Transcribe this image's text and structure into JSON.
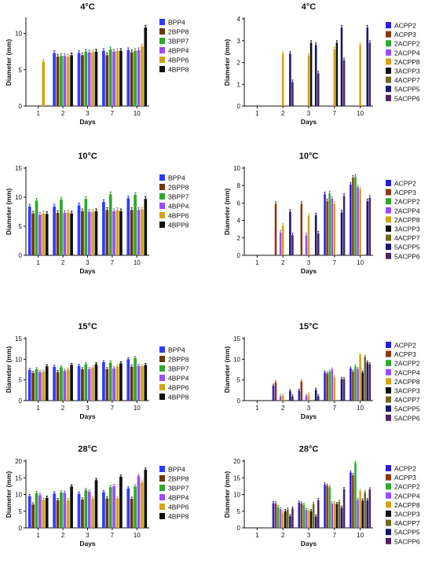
{
  "colors": {
    "BPP4": "#2e3bff",
    "2BPP8": "#6b3a0a",
    "3BPP7": "#2fa82f",
    "4BPP4": "#9a4cff",
    "4BPP6": "#d3a21c",
    "4BPP8": "#111111",
    "ACPP2": "#2e1fd6",
    "ACPP3": "#8a3a12",
    "2ACPP2": "#2fa82f",
    "2ACPP4": "#9a4cff",
    "2ACPP8": "#d3a21c",
    "3ACPP3": "#111111",
    "4ACPP7": "#6f6a22",
    "5ACPP5": "#1a1570",
    "5ACPP6": "#4a2660"
  },
  "chart_data": [
    {
      "type": "bar",
      "title": "4°C",
      "xlabel": "Days",
      "ylabel": "Diameter (mm)",
      "categories": [
        "1",
        "2",
        "3",
        "7",
        "10"
      ],
      "ylim": [
        0,
        12
      ],
      "yticks": [
        0,
        5,
        10
      ],
      "series": [
        {
          "name": "BPP4",
          "values": [
            0,
            7.3,
            7.3,
            7.6,
            7.7
          ]
        },
        {
          "name": "2BPP8",
          "values": [
            0,
            6.8,
            7.0,
            7.0,
            7.4
          ]
        },
        {
          "name": "3BPP7",
          "values": [
            0,
            6.9,
            7.5,
            7.8,
            7.6
          ]
        },
        {
          "name": "4BPP4",
          "values": [
            0,
            6.9,
            7.4,
            7.5,
            7.7
          ]
        },
        {
          "name": "4BPP6",
          "values": [
            6.1,
            6.8,
            7.4,
            7.6,
            8.2
          ]
        },
        {
          "name": "4BPP8",
          "values": [
            0,
            7.0,
            7.5,
            7.6,
            10.8
          ]
        }
      ]
    },
    {
      "type": "bar",
      "title": "4°C",
      "xlabel": "Days",
      "ylabel": "Diameter (mm)",
      "categories": [
        "1",
        "2",
        "3",
        "7",
        "10"
      ],
      "ylim": [
        0,
        4
      ],
      "yticks": [
        0,
        1,
        2,
        3,
        4
      ],
      "series": [
        {
          "name": "ACPP2",
          "values": [
            0,
            0,
            0,
            0,
            0
          ]
        },
        {
          "name": "ACPP3",
          "values": [
            0,
            0,
            0,
            0,
            0
          ]
        },
        {
          "name": "2ACPP2",
          "values": [
            0,
            0,
            0,
            0,
            0
          ]
        },
        {
          "name": "2ACPP4",
          "values": [
            0,
            0,
            0,
            0,
            0
          ]
        },
        {
          "name": "2ACPP8",
          "values": [
            0,
            2.4,
            2.3,
            2.6,
            2.8
          ]
        },
        {
          "name": "3ACPP3",
          "values": [
            0,
            0,
            2.9,
            2.9,
            0
          ]
        },
        {
          "name": "4ACPP7",
          "values": [
            0,
            0,
            0,
            0,
            0
          ]
        },
        {
          "name": "5ACPP5",
          "values": [
            0,
            2.4,
            2.8,
            3.6,
            3.6
          ]
        },
        {
          "name": "5ACPP6",
          "values": [
            0,
            1.1,
            1.5,
            2.1,
            2.9
          ]
        }
      ]
    },
    {
      "type": "bar",
      "title": "10°C",
      "xlabel": "Days",
      "ylabel": "Diameter (mm)",
      "categories": [
        "1",
        "2",
        "3",
        "7",
        "10"
      ],
      "ylim": [
        0,
        15
      ],
      "yticks": [
        0,
        5,
        10,
        15
      ],
      "series": [
        {
          "name": "BPP4",
          "values": [
            8.4,
            8.4,
            8.6,
            9.2,
            9.8
          ]
        },
        {
          "name": "2BPP8",
          "values": [
            7.2,
            7.3,
            7.6,
            7.8,
            7.8
          ]
        },
        {
          "name": "3BPP7",
          "values": [
            9.4,
            9.6,
            9.7,
            10.5,
            10.4
          ]
        },
        {
          "name": "4BPP4",
          "values": [
            7.0,
            7.3,
            7.5,
            7.6,
            7.8
          ]
        },
        {
          "name": "4BPP6",
          "values": [
            7.2,
            7.4,
            7.5,
            7.8,
            7.9
          ]
        },
        {
          "name": "4BPP8",
          "values": [
            7.1,
            7.2,
            7.6,
            7.6,
            9.7
          ]
        }
      ]
    },
    {
      "type": "bar",
      "title": "10°C",
      "xlabel": "Days",
      "ylabel": "Diameter (mm)",
      "categories": [
        "1",
        "2",
        "3",
        "7",
        "10"
      ],
      "ylim": [
        0,
        10
      ],
      "yticks": [
        0,
        2,
        4,
        6,
        8,
        10
      ],
      "series": [
        {
          "name": "ACPP2",
          "values": [
            0,
            0,
            0,
            7.0,
            8.1
          ]
        },
        {
          "name": "ACPP3",
          "values": [
            0,
            5.9,
            5.9,
            6.2,
            8.9
          ]
        },
        {
          "name": "2ACPP2",
          "values": [
            0,
            0,
            0,
            7.1,
            9.0
          ]
        },
        {
          "name": "2ACPP4",
          "values": [
            0,
            2.6,
            2.3,
            6.5,
            7.8
          ]
        },
        {
          "name": "2ACPP8",
          "values": [
            0,
            3.4,
            4.5,
            5.9,
            7.6
          ]
        },
        {
          "name": "3ACPP3",
          "values": [
            0,
            0,
            0,
            0,
            0
          ]
        },
        {
          "name": "4ACPP7",
          "values": [
            0,
            0,
            0,
            0,
            0
          ]
        },
        {
          "name": "5ACPP5",
          "values": [
            0,
            5.0,
            4.6,
            4.9,
            6.2
          ]
        },
        {
          "name": "5ACPP6",
          "values": [
            0,
            2.3,
            2.5,
            6.8,
            6.6
          ]
        }
      ]
    },
    {
      "type": "bar",
      "title": "15°C",
      "xlabel": "Days",
      "ylabel": "Diameter (mm)",
      "categories": [
        "1",
        "2",
        "3",
        "7",
        "10"
      ],
      "ylim": [
        0,
        15
      ],
      "yticks": [
        0,
        5,
        10,
        15
      ],
      "series": [
        {
          "name": "BPP4",
          "values": [
            7.4,
            8.2,
            8.4,
            9.3,
            10.0
          ]
        },
        {
          "name": "2BPP8",
          "values": [
            6.7,
            6.9,
            7.6,
            7.6,
            8.2
          ]
        },
        {
          "name": "3BPP7",
          "values": [
            7.6,
            8.1,
            8.8,
            9.2,
            10.3
          ]
        },
        {
          "name": "4BPP4",
          "values": [
            6.9,
            7.2,
            7.6,
            7.8,
            8.4
          ]
        },
        {
          "name": "4BPP6",
          "values": [
            7.0,
            7.5,
            8.0,
            8.2,
            8.3
          ]
        },
        {
          "name": "4BPP8",
          "values": [
            8.3,
            8.6,
            8.8,
            9.0,
            8.6
          ]
        }
      ]
    },
    {
      "type": "bar",
      "title": "15°C",
      "xlabel": "Days",
      "ylabel": "Diameter (mm)",
      "categories": [
        "1",
        "2",
        "3",
        "7",
        "10"
      ],
      "ylim": [
        0,
        15
      ],
      "yticks": [
        0,
        5,
        10,
        15
      ],
      "series": [
        {
          "name": "ACPP2",
          "values": [
            0,
            3.6,
            2.4,
            6.8,
            7.8
          ]
        },
        {
          "name": "ACPP3",
          "values": [
            0,
            4.4,
            4.6,
            6.5,
            7.0
          ]
        },
        {
          "name": "2ACPP2",
          "values": [
            0,
            0,
            0,
            7.0,
            8.3
          ]
        },
        {
          "name": "2ACPP4",
          "values": [
            0,
            1.0,
            1.1,
            7.5,
            7.6
          ]
        },
        {
          "name": "2ACPP8",
          "values": [
            0,
            1.2,
            1.5,
            5.6,
            11.0
          ]
        },
        {
          "name": "3ACPP3",
          "values": [
            0,
            0,
            0,
            0,
            6.8
          ]
        },
        {
          "name": "4ACPP7",
          "values": [
            0,
            0,
            0,
            0,
            10.6
          ]
        },
        {
          "name": "5ACPP5",
          "values": [
            0,
            2.3,
            2.6,
            5.2,
            9.2
          ]
        },
        {
          "name": "5ACPP6",
          "values": [
            0,
            1.0,
            1.1,
            5.2,
            8.8
          ]
        }
      ]
    },
    {
      "type": "bar",
      "title": "28°C",
      "xlabel": "Days",
      "ylabel": "Diameter (mm)",
      "categories": [
        "1",
        "2",
        "3",
        "7",
        "10"
      ],
      "ylim": [
        0,
        20
      ],
      "yticks": [
        0,
        5,
        10,
        15,
        20
      ],
      "series": [
        {
          "name": "BPP4",
          "values": [
            9.5,
            10.3,
            10.2,
            10.7,
            11.8
          ]
        },
        {
          "name": "2BPP8",
          "values": [
            7.0,
            8.3,
            8.5,
            8.8,
            8.7
          ]
        },
        {
          "name": "3BPP7",
          "values": [
            10.4,
            10.6,
            11.3,
            12.2,
            12.4
          ]
        },
        {
          "name": "4BPP4",
          "values": [
            9.8,
            10.5,
            10.8,
            12.5,
            15.5
          ]
        },
        {
          "name": "4BPP6",
          "values": [
            8.4,
            8.3,
            8.8,
            8.9,
            13.6
          ]
        },
        {
          "name": "4BPP8",
          "values": [
            9.0,
            12.4,
            14.3,
            15.3,
            17.4
          ]
        }
      ]
    },
    {
      "type": "bar",
      "title": "28°C",
      "xlabel": "Days",
      "ylabel": "Diameter (mm)",
      "categories": [
        "1",
        "2",
        "3",
        "7",
        "10"
      ],
      "ylim": [
        0,
        20
      ],
      "yticks": [
        0,
        5,
        10,
        15,
        20
      ],
      "series": [
        {
          "name": "ACPP2",
          "values": [
            0,
            7.4,
            7.6,
            13.0,
            16.6
          ]
        },
        {
          "name": "ACPP3",
          "values": [
            0,
            7.3,
            7.3,
            12.6,
            15.8
          ]
        },
        {
          "name": "2ACPP2",
          "values": [
            0,
            6.2,
            6.9,
            12.2,
            19.5
          ]
        },
        {
          "name": "2ACPP4",
          "values": [
            0,
            5.6,
            5.4,
            7.3,
            8.4
          ]
        },
        {
          "name": "2ACPP8",
          "values": [
            0,
            4.6,
            5.2,
            7.4,
            11.0
          ]
        },
        {
          "name": "3ACPP3",
          "values": [
            0,
            5.0,
            5.0,
            7.1,
            8.2
          ]
        },
        {
          "name": "4ACPP7",
          "values": [
            0,
            5.5,
            7.2,
            7.8,
            10.6
          ]
        },
        {
          "name": "5ACPP5",
          "values": [
            0,
            3.5,
            3.4,
            6.0,
            8.3
          ]
        },
        {
          "name": "5ACPP6",
          "values": [
            0,
            5.8,
            8.3,
            11.6,
            11.5
          ]
        }
      ]
    }
  ]
}
